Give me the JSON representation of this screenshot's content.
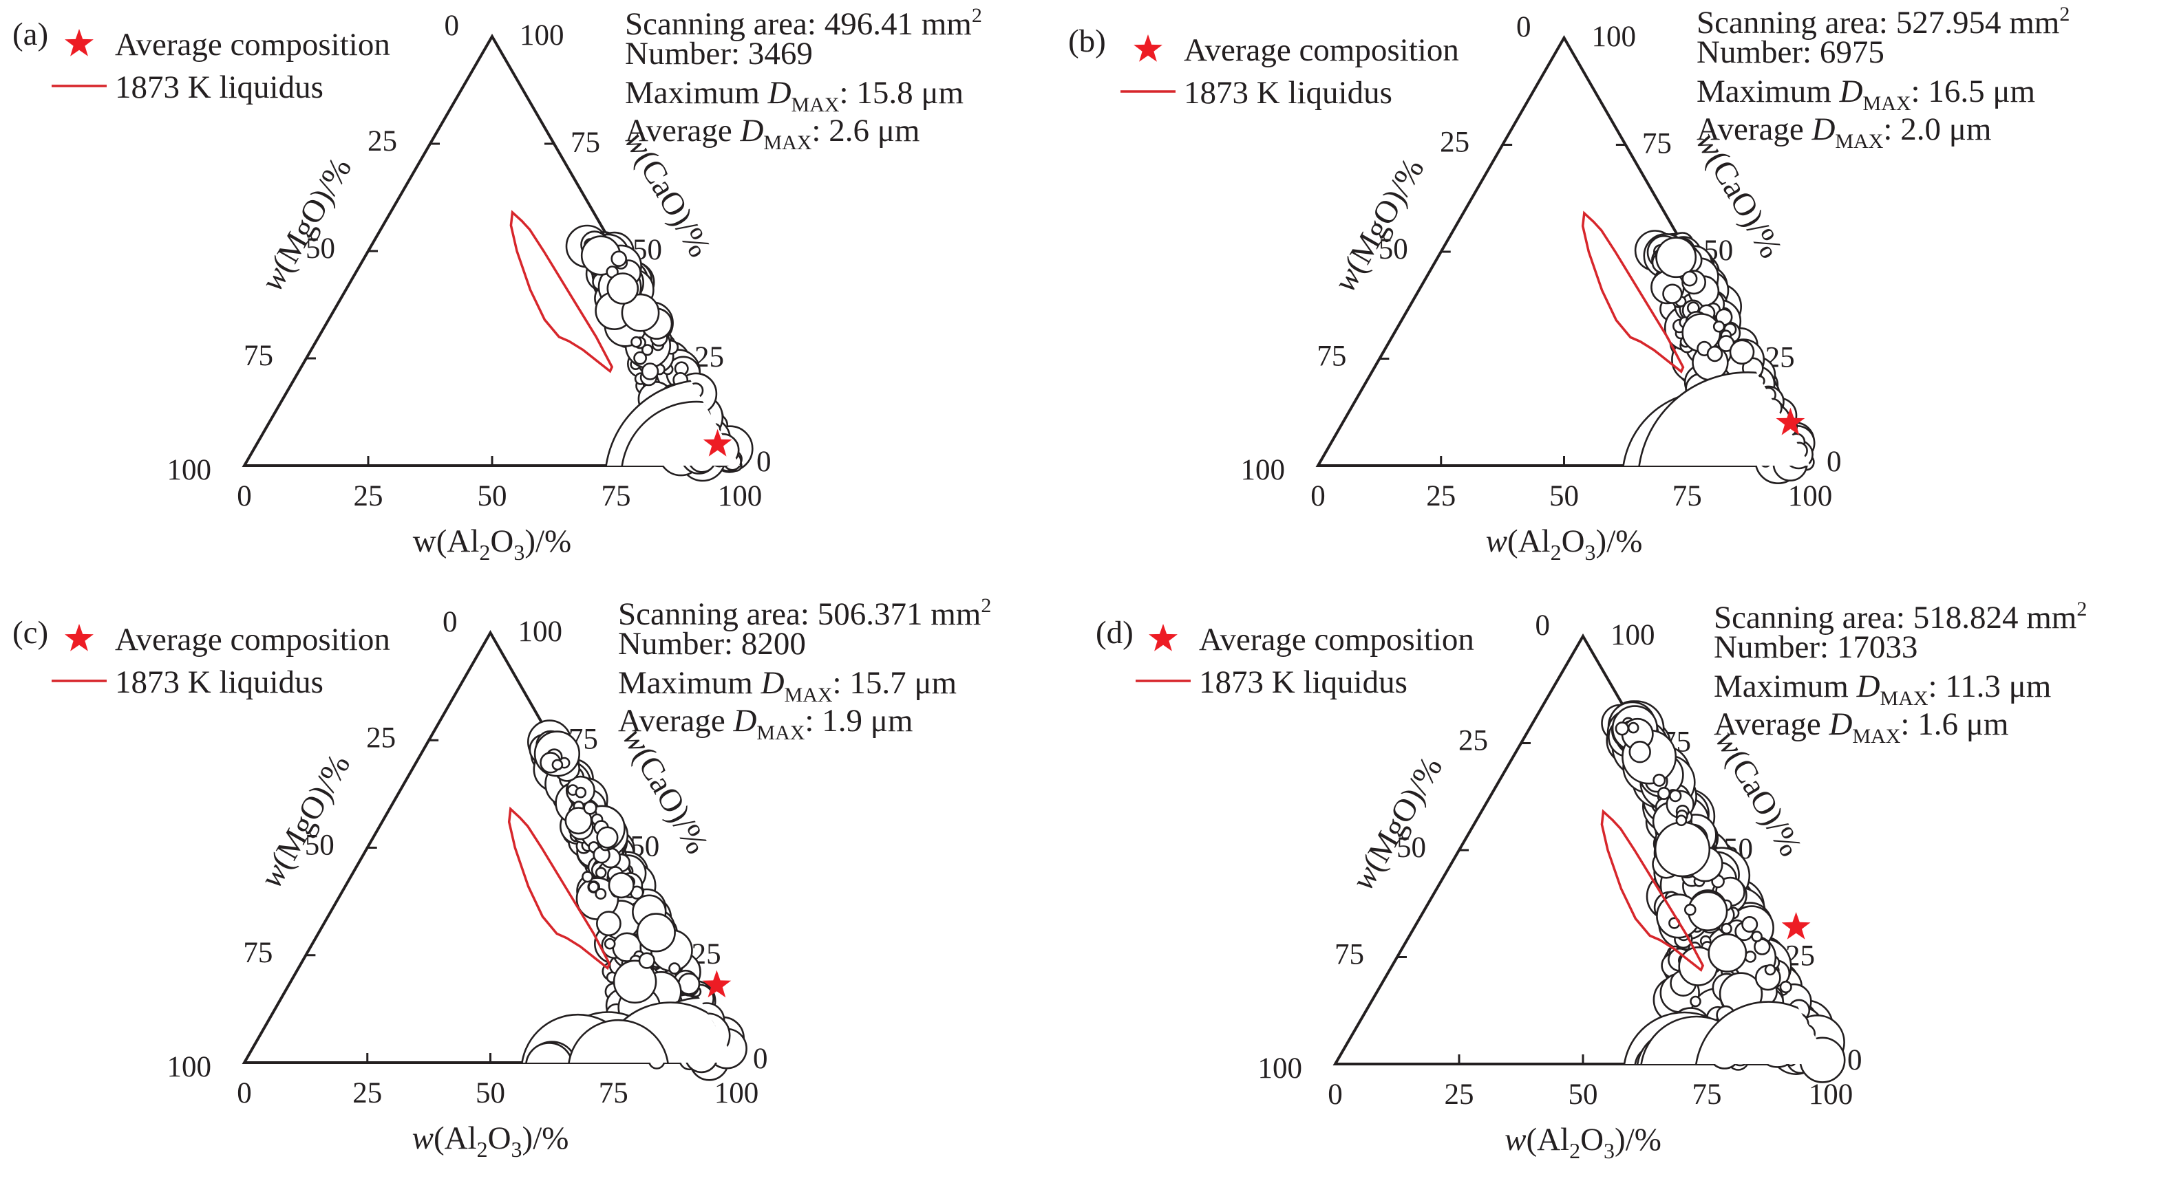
{
  "figure": {
    "legend": {
      "average_label": "Average composition",
      "liquidus_label": "1873 K liquidus",
      "average_color": "#ed1c24",
      "liquidus_color": "#d7262b"
    },
    "scanning_prefix": "Scanning area: ",
    "number_prefix": "Number: ",
    "max_prefix": "Maximum ",
    "avg_prefix": "Average ",
    "dmax_symbol": "D",
    "dmax_subscript": "MAX",
    "area_unit": "mm",
    "area_unit_power": "2",
    "length_unit": ": ",
    "micron_unit": " μm"
  },
  "chart_data": [
    {
      "type": "scatter",
      "subtype": "ternary",
      "panel_label": "(a)",
      "title": "",
      "axes": {
        "bottom": {
          "label_prefix": "w(Al",
          "label_sub": "2",
          "label_mid": "O",
          "label_sub2": "3",
          "label_suffix": ")/%",
          "italic_w": false,
          "ticks": [
            "0",
            "25",
            "50",
            "75",
            "100"
          ]
        },
        "left": {
          "label": "w(MgO)/%",
          "ticks": [
            "100",
            "75",
            "50",
            "25",
            "0"
          ]
        },
        "right": {
          "label": "w(CaO)/%",
          "ticks": [
            "0",
            "25",
            "50",
            "75",
            "100"
          ]
        }
      },
      "scanning_area": "496.41",
      "number": "3469",
      "max_dmax": "15.8",
      "avg_dmax": "2.6",
      "average_composition": {
        "Al2O3": 93,
        "CaO": 5,
        "MgO": 2
      }
    },
    {
      "type": "scatter",
      "subtype": "ternary",
      "panel_label": "(b)",
      "title": "",
      "axes": {
        "bottom": {
          "label_prefix": "w(Al",
          "label_sub": "2",
          "label_mid": "O",
          "label_sub2": "3",
          "label_suffix": ")/%",
          "italic_w": true,
          "ticks": [
            "0",
            "25",
            "50",
            "75",
            "100"
          ]
        },
        "left": {
          "label": "w(MgO)/%",
          "ticks": [
            "100",
            "75",
            "50",
            "25",
            "0"
          ]
        },
        "right": {
          "label": "w(CaO)/%",
          "ticks": [
            "0",
            "25",
            "50",
            "75",
            "100"
          ]
        }
      },
      "scanning_area": "527.954",
      "number": "6975",
      "max_dmax": "16.5",
      "avg_dmax": "2.0",
      "average_composition": {
        "Al2O3": 91,
        "CaO": 10,
        "MgO": -1
      }
    },
    {
      "type": "scatter",
      "subtype": "ternary",
      "panel_label": "(c)",
      "title": "",
      "axes": {
        "bottom": {
          "label_prefix": "w(Al",
          "label_sub": "2",
          "label_mid": "O",
          "label_sub2": "3",
          "label_suffix": ")/%",
          "italic_w": true,
          "ticks": [
            "0",
            "25",
            "50",
            "75",
            "100"
          ]
        },
        "left": {
          "label": "w(MgO)/%",
          "ticks": [
            "100",
            "75",
            "50",
            "25",
            "0"
          ]
        },
        "right": {
          "label": "w(CaO)/%",
          "ticks": [
            "0",
            "25",
            "50",
            "75",
            "100"
          ]
        }
      },
      "scanning_area": "506.371",
      "number": "8200",
      "max_dmax": "15.7",
      "avg_dmax": "1.9",
      "average_composition": {
        "Al2O3": 87,
        "CaO": 18,
        "MgO": -5
      }
    },
    {
      "type": "scatter",
      "subtype": "ternary",
      "panel_label": "(d)",
      "title": "",
      "axes": {
        "bottom": {
          "label_prefix": "w(Al",
          "label_sub": "2",
          "label_mid": "O",
          "label_sub2": "3",
          "label_suffix": ")/%",
          "italic_w": true,
          "ticks": [
            "0",
            "25",
            "50",
            "75",
            "100"
          ]
        },
        "left": {
          "label": "w(MgO)/%",
          "ticks": [
            "100",
            "75",
            "50",
            "25",
            "0"
          ]
        },
        "right": {
          "label": "w(CaO)/%",
          "ticks": [
            "0",
            "25",
            "50",
            "75",
            "100"
          ]
        }
      },
      "scanning_area": "518.824",
      "number": "17033",
      "max_dmax": "11.3",
      "avg_dmax": "1.6",
      "average_composition": {
        "Al2O3": 77,
        "CaO": 32,
        "MgO": -9
      }
    }
  ]
}
